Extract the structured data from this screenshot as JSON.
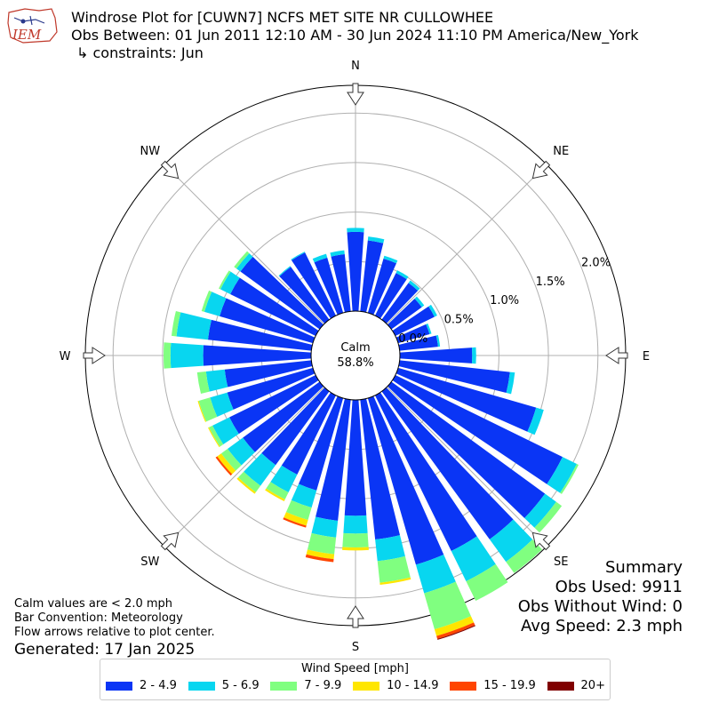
{
  "header": {
    "title": "Windrose Plot for [CUWN7] NCFS MET SITE NR CULLOWHEE",
    "period": "Obs Between: 01 Jun 2011 12:10 AM - 30 Jun 2024 11:10 PM America/New_York",
    "constraints": "↳ constraints: Jun"
  },
  "logo": {
    "text": "IEM"
  },
  "calm": {
    "label": "Calm",
    "value": "58.8%"
  },
  "summary": {
    "title": "Summary",
    "obs_used": "Obs Used: 9911",
    "obs_without_wind": "Obs Without Wind: 0",
    "avg_speed": "Avg Speed: 2.3 mph"
  },
  "footnotes": {
    "calm_note": "Calm values are < 2.0 mph",
    "bar_convention": "Bar Convention: Meteorology",
    "flow_note": "Flow arrows relative to plot center.",
    "generated": "Generated: 17 Jan 2025"
  },
  "chart_data": {
    "type": "windrose",
    "directions": [
      "N",
      "NE",
      "E",
      "SE",
      "S",
      "SW",
      "W",
      "NW"
    ],
    "radial_ticks": [
      "0.0%",
      "0.5%",
      "1.0%",
      "1.5%",
      "2.0%"
    ],
    "rlim": [
      0,
      2.28
    ],
    "legend_title": "Wind Speed [mph]",
    "bins": [
      {
        "label": "2 - 4.9",
        "color": "#0a35f5"
      },
      {
        "label": "5 - 6.9",
        "color": "#08d6f0"
      },
      {
        "label": "7 - 9.9",
        "color": "#80ff80"
      },
      {
        "label": "10 - 14.9",
        "color": "#ffe600"
      },
      {
        "label": "15 - 19.9",
        "color": "#ff4500"
      },
      {
        "label": "20+",
        "color": "#800000"
      }
    ],
    "sectors": [
      {
        "dir": 0,
        "values": [
          0.8,
          0.04,
          0,
          0,
          0,
          0
        ]
      },
      {
        "dir": 10,
        "values": [
          0.72,
          0.04,
          0,
          0,
          0,
          0
        ]
      },
      {
        "dir": 20,
        "values": [
          0.57,
          0.03,
          0,
          0,
          0,
          0
        ]
      },
      {
        "dir": 30,
        "values": [
          0.48,
          0.03,
          0,
          0,
          0,
          0
        ]
      },
      {
        "dir": 40,
        "values": [
          0.46,
          0.03,
          0,
          0,
          0,
          0
        ]
      },
      {
        "dir": 50,
        "values": [
          0.38,
          0.03,
          0,
          0,
          0,
          0
        ]
      },
      {
        "dir": 60,
        "values": [
          0.44,
          0.03,
          0,
          0,
          0,
          0
        ]
      },
      {
        "dir": 70,
        "values": [
          0.33,
          0.02,
          0,
          0,
          0,
          0
        ]
      },
      {
        "dir": 80,
        "values": [
          0.39,
          0.02,
          0,
          0,
          0,
          0
        ]
      },
      {
        "dir": 90,
        "values": [
          0.73,
          0.04,
          0,
          0,
          0,
          0
        ]
      },
      {
        "dir": 100,
        "values": [
          1.12,
          0.05,
          0,
          0,
          0,
          0
        ]
      },
      {
        "dir": 110,
        "values": [
          1.45,
          0.08,
          0,
          0,
          0,
          0
        ]
      },
      {
        "dir": 120,
        "values": [
          1.88,
          0.16,
          0.02,
          0,
          0,
          0
        ]
      },
      {
        "dir": 130,
        "values": [
          1.92,
          0.14,
          0.07,
          0,
          0,
          0
        ]
      },
      {
        "dir": 140,
        "values": [
          1.85,
          0.28,
          0.14,
          0,
          0,
          0
        ]
      },
      {
        "dir": 150,
        "values": [
          1.75,
          0.34,
          0.22,
          0,
          0,
          0
        ]
      },
      {
        "dir": 160,
        "values": [
          1.75,
          0.3,
          0.38,
          0.07,
          0.03,
          0.01
        ]
      },
      {
        "dir": 170,
        "values": [
          1.42,
          0.22,
          0.22,
          0.02,
          0,
          0
        ]
      },
      {
        "dir": 180,
        "values": [
          1.17,
          0.18,
          0.14,
          0.03,
          0,
          0
        ]
      },
      {
        "dir": 190,
        "values": [
          1.23,
          0.17,
          0.17,
          0.05,
          0.03,
          0
        ]
      },
      {
        "dir": 200,
        "values": [
          0.97,
          0.18,
          0.13,
          0.06,
          0.02,
          0
        ]
      },
      {
        "dir": 210,
        "values": [
          0.89,
          0.2,
          0.08,
          0.02,
          0,
          0
        ]
      },
      {
        "dir": 220,
        "values": [
          0.92,
          0.26,
          0.08,
          0.02,
          0,
          0
        ]
      },
      {
        "dir": 230,
        "values": [
          0.96,
          0.19,
          0.08,
          0.05,
          0.02,
          0
        ]
      },
      {
        "dir": 240,
        "values": [
          0.97,
          0.19,
          0.04,
          0.01,
          0,
          0
        ]
      },
      {
        "dir": 250,
        "values": [
          0.9,
          0.18,
          0.12,
          0.01,
          0,
          0
        ]
      },
      {
        "dir": 260,
        "values": [
          0.88,
          0.19,
          0.09,
          0,
          0,
          0
        ]
      },
      {
        "dir": 270,
        "values": [
          1.09,
          0.33,
          0.07,
          0,
          0,
          0
        ]
      },
      {
        "dir": 280,
        "values": [
          1.05,
          0.32,
          0.05,
          0,
          0,
          0
        ]
      },
      {
        "dir": 290,
        "values": [
          0.98,
          0.16,
          0.03,
          0,
          0,
          0
        ]
      },
      {
        "dir": 300,
        "values": [
          0.96,
          0.11,
          0.02,
          0,
          0,
          0
        ]
      },
      {
        "dir": 310,
        "values": [
          0.99,
          0.05,
          0.03,
          0,
          0,
          0
        ]
      },
      {
        "dir": 320,
        "values": [
          0.66,
          0.01,
          0,
          0,
          0,
          0
        ]
      },
      {
        "dir": 330,
        "values": [
          0.71,
          0.01,
          0,
          0,
          0,
          0
        ]
      },
      {
        "dir": 340,
        "values": [
          0.58,
          0.04,
          0,
          0,
          0,
          0
        ]
      },
      {
        "dir": 350,
        "values": [
          0.58,
          0.04,
          0,
          0,
          0,
          0
        ]
      }
    ]
  }
}
